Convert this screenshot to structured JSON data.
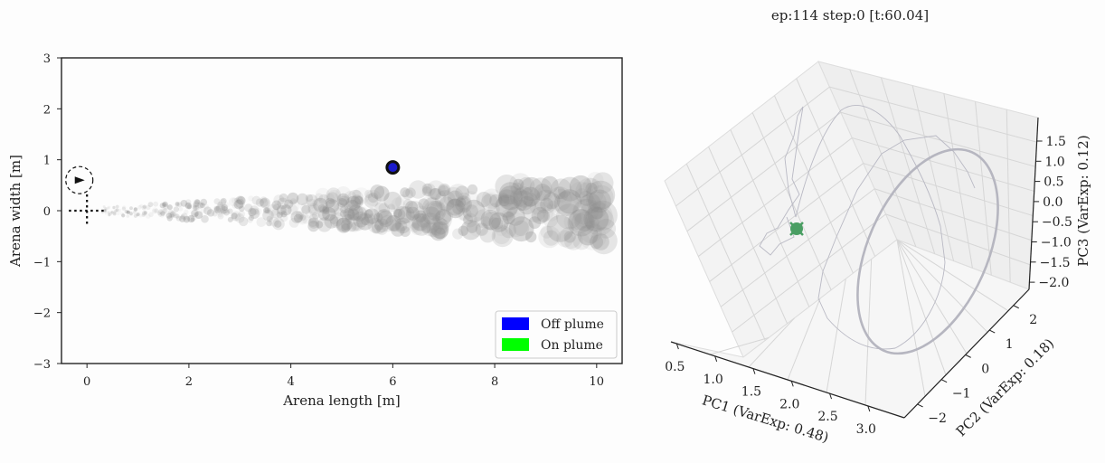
{
  "figure": {
    "title": "ep:114 step:0 [t:60.04]"
  },
  "colors": {
    "off_plume": "#0000ff",
    "on_plume": "#00ff00",
    "puff": "#8c8c8c",
    "agent_marker": "#111111",
    "source_marker": "#1a1acc",
    "trajectory": "#b5b5c0",
    "start_marker": "#4a9e63"
  },
  "chart_data": [
    {
      "type": "scatter",
      "title": "",
      "xlabel": "Arena length [m]",
      "ylabel": "Arena width [m]",
      "xlim": [
        -0.5,
        10.5
      ],
      "ylim": [
        -3,
        3
      ],
      "xticks": [
        "0",
        "2",
        "4",
        "6",
        "8",
        "10"
      ],
      "yticks": [
        "3",
        "2",
        "1",
        "0",
        "−1",
        "−2",
        "−3"
      ],
      "legend": {
        "placement": "bottom-right",
        "entries": [
          {
            "label": "Off plume",
            "color": "#0000ff"
          },
          {
            "label": "On plume",
            "color": "#00ff00"
          }
        ]
      },
      "source": {
        "x": 0,
        "y": 0
      },
      "agent": {
        "x": 6.0,
        "y": 0.85
      },
      "agent_start": {
        "x": -0.15,
        "y": 0.6,
        "heading": "right"
      },
      "plume": {
        "x_start": 0.3,
        "x_end": 10.2,
        "center_y": 0.0
      }
    },
    {
      "type": "line",
      "subtype": "3d-trajectory",
      "title": "",
      "xlabel": "PC1 (VarExp: 0.48)",
      "ylabel": "PC2 (VarExp: 0.18)",
      "zlabel": "PC3 (VarExp: 0.12)",
      "xticks": [
        "0.5",
        "1.0",
        "1.5",
        "2.0",
        "2.5",
        "3.0"
      ],
      "yticks": [
        "−2",
        "−1",
        "0",
        "1",
        "2"
      ],
      "zticks": [
        "1.5",
        "1.0",
        "0.5",
        "0.0",
        "−0.5",
        "−1.0",
        "−1.5",
        "−2.0"
      ],
      "grid": true,
      "start_point": {
        "x": 0.7,
        "y": 0.0,
        "z": -0.5
      }
    }
  ]
}
